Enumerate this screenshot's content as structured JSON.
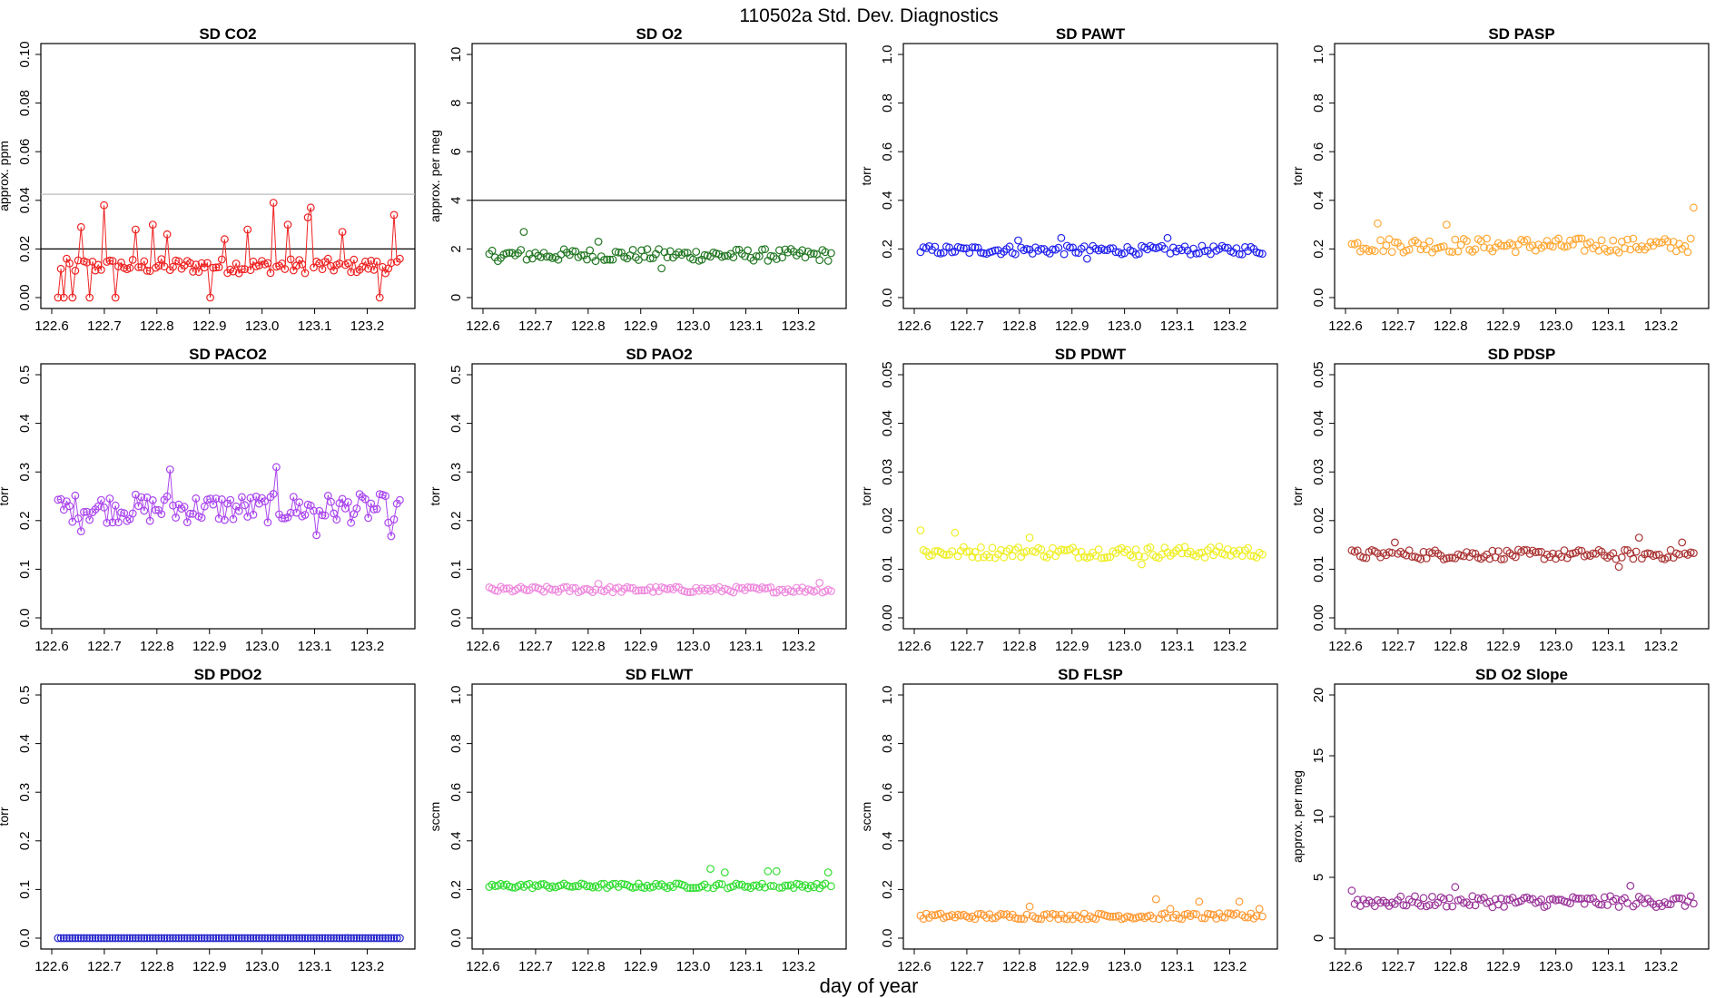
{
  "page": {
    "title": "110502a   Std. Dev. Diagnostics",
    "xlabel": "day of year"
  },
  "chart_data": [
    {
      "type": "scatter",
      "title": "SD CO2",
      "ylabel": "approx. ppm",
      "ylim": [
        0,
        0.1
      ],
      "yticks": [
        "0.00",
        "0.02",
        "0.04",
        "0.06",
        "0.08",
        "0.10"
      ],
      "xlim": [
        122.6,
        123.27
      ],
      "xticks": [
        "122.6",
        "122.7",
        "122.8",
        "122.9",
        "123.0",
        "123.1",
        "123.2"
      ],
      "color": "#ee2222",
      "connect": true,
      "hlines": [
        {
          "y": 0.02,
          "color": "#000000"
        },
        {
          "y": 0.0425,
          "color": "#bbbbbb"
        }
      ],
      "base": 0.013,
      "spread": 0.003,
      "spikes": [
        {
          "x": 122.61,
          "y": 0.0
        },
        {
          "x": 122.622,
          "y": 0.0
        },
        {
          "x": 122.64,
          "y": 0.0
        },
        {
          "x": 122.655,
          "y": 0.029
        },
        {
          "x": 122.67,
          "y": 0.0
        },
        {
          "x": 122.7,
          "y": 0.038
        },
        {
          "x": 122.72,
          "y": 0.0
        },
        {
          "x": 122.76,
          "y": 0.028
        },
        {
          "x": 122.79,
          "y": 0.03
        },
        {
          "x": 122.82,
          "y": 0.026
        },
        {
          "x": 122.9,
          "y": 0.0
        },
        {
          "x": 122.93,
          "y": 0.024
        },
        {
          "x": 122.97,
          "y": 0.028
        },
        {
          "x": 123.02,
          "y": 0.039
        },
        {
          "x": 123.05,
          "y": 0.03
        },
        {
          "x": 123.085,
          "y": 0.033
        },
        {
          "x": 123.095,
          "y": 0.037
        },
        {
          "x": 123.155,
          "y": 0.027
        },
        {
          "x": 123.225,
          "y": 0.0
        },
        {
          "x": 123.25,
          "y": 0.034
        }
      ]
    },
    {
      "type": "scatter",
      "title": "SD O2",
      "ylabel": "approx. per meg",
      "ylim": [
        0,
        10
      ],
      "yticks": [
        "0",
        "2",
        "4",
        "6",
        "8",
        "10"
      ],
      "xlim": [
        122.6,
        123.27
      ],
      "xticks": [
        "122.6",
        "122.7",
        "122.8",
        "122.9",
        "123.0",
        "123.1",
        "123.2"
      ],
      "color": "#227722",
      "connect": false,
      "hlines": [
        {
          "y": 4,
          "color": "#000000"
        }
      ],
      "base": 1.75,
      "spread": 0.25,
      "spikes": [
        {
          "x": 122.68,
          "y": 2.7
        },
        {
          "x": 122.82,
          "y": 2.3
        },
        {
          "x": 122.94,
          "y": 1.2
        }
      ]
    },
    {
      "type": "scatter",
      "title": "SD PAWT",
      "ylabel": "torr",
      "ylim": [
        0,
        1.0
      ],
      "yticks": [
        "0.0",
        "0.2",
        "0.4",
        "0.6",
        "0.8",
        "1.0"
      ],
      "xlim": [
        122.6,
        123.27
      ],
      "xticks": [
        "122.6",
        "122.7",
        "122.8",
        "122.9",
        "123.0",
        "123.1",
        "123.2"
      ],
      "color": "#2222ee",
      "connect": false,
      "hlines": [],
      "base": 0.195,
      "spread": 0.018,
      "spikes": [
        {
          "x": 122.8,
          "y": 0.235
        },
        {
          "x": 122.88,
          "y": 0.245
        },
        {
          "x": 123.08,
          "y": 0.245
        },
        {
          "x": 122.93,
          "y": 0.16
        }
      ]
    },
    {
      "type": "scatter",
      "title": "SD PASP",
      "ylabel": "torr",
      "ylim": [
        0,
        1.0
      ],
      "yticks": [
        "0.0",
        "0.2",
        "0.4",
        "0.6",
        "0.8",
        "1.0"
      ],
      "xlim": [
        122.6,
        123.27
      ],
      "xticks": [
        "122.6",
        "122.7",
        "122.8",
        "122.9",
        "123.0",
        "123.1",
        "123.2"
      ],
      "color": "#ffa733",
      "connect": false,
      "hlines": [],
      "base": 0.215,
      "spread": 0.03,
      "spikes": [
        {
          "x": 122.66,
          "y": 0.305
        },
        {
          "x": 122.79,
          "y": 0.3
        },
        {
          "x": 123.265,
          "y": 0.37
        }
      ]
    },
    {
      "type": "scatter",
      "title": "SD PACO2",
      "ylabel": "torr",
      "ylim": [
        0,
        0.5
      ],
      "yticks": [
        "0.0",
        "0.1",
        "0.2",
        "0.3",
        "0.4",
        "0.5"
      ],
      "xlim": [
        122.6,
        123.27
      ],
      "xticks": [
        "122.6",
        "122.7",
        "122.8",
        "122.9",
        "123.0",
        "123.1",
        "123.2"
      ],
      "color": "#aa44ee",
      "connect": true,
      "hlines": [],
      "base": 0.225,
      "spread": 0.03,
      "spikes": [
        {
          "x": 122.825,
          "y": 0.305
        },
        {
          "x": 123.025,
          "y": 0.31
        },
        {
          "x": 123.105,
          "y": 0.17
        },
        {
          "x": 123.245,
          "y": 0.168
        },
        {
          "x": 122.655,
          "y": 0.178
        }
      ]
    },
    {
      "type": "scatter",
      "title": "SD PAO2",
      "ylabel": "torr",
      "ylim": [
        0,
        0.5
      ],
      "yticks": [
        "0.0",
        "0.1",
        "0.2",
        "0.3",
        "0.4",
        "0.5"
      ],
      "xlim": [
        122.6,
        123.27
      ],
      "xticks": [
        "122.6",
        "122.7",
        "122.8",
        "122.9",
        "123.0",
        "123.1",
        "123.2"
      ],
      "color": "#ee88dd",
      "connect": false,
      "hlines": [],
      "base": 0.058,
      "spread": 0.006,
      "spikes": [
        {
          "x": 122.82,
          "y": 0.07
        },
        {
          "x": 123.24,
          "y": 0.072
        }
      ]
    },
    {
      "type": "scatter",
      "title": "SD PDWT",
      "ylabel": "torr",
      "ylim": [
        0,
        0.05
      ],
      "yticks": [
        "0.00",
        "0.01",
        "0.02",
        "0.03",
        "0.04",
        "0.05"
      ],
      "xlim": [
        122.6,
        123.27
      ],
      "xticks": [
        "122.6",
        "122.7",
        "122.8",
        "122.9",
        "123.0",
        "123.1",
        "123.2"
      ],
      "color": "#eeee22",
      "connect": false,
      "hlines": [],
      "base": 0.0135,
      "spread": 0.0012,
      "spikes": [
        {
          "x": 122.61,
          "y": 0.018
        },
        {
          "x": 122.68,
          "y": 0.0175
        },
        {
          "x": 122.82,
          "y": 0.0165
        },
        {
          "x": 123.035,
          "y": 0.011
        }
      ]
    },
    {
      "type": "scatter",
      "title": "SD PDSP",
      "ylabel": "torr",
      "ylim": [
        0,
        0.05
      ],
      "yticks": [
        "0.00",
        "0.01",
        "0.02",
        "0.03",
        "0.04",
        "0.05"
      ],
      "xlim": [
        122.6,
        123.27
      ],
      "xticks": [
        "122.6",
        "122.7",
        "122.8",
        "122.9",
        "123.0",
        "123.1",
        "123.2"
      ],
      "color": "#aa3333",
      "connect": false,
      "hlines": [],
      "base": 0.013,
      "spread": 0.001,
      "spikes": [
        {
          "x": 122.695,
          "y": 0.0155
        },
        {
          "x": 123.16,
          "y": 0.0165
        },
        {
          "x": 123.24,
          "y": 0.0155
        },
        {
          "x": 123.12,
          "y": 0.0105
        }
      ]
    },
    {
      "type": "scatter",
      "title": "SD PDO2",
      "ylabel": "torr",
      "ylim": [
        0,
        0.5
      ],
      "yticks": [
        "0.0",
        "0.1",
        "0.2",
        "0.3",
        "0.4",
        "0.5"
      ],
      "xlim": [
        122.6,
        123.27
      ],
      "xticks": [
        "122.6",
        "122.7",
        "122.8",
        "122.9",
        "123.0",
        "123.1",
        "123.2"
      ],
      "color": "#2222cc",
      "connect": false,
      "hlines": [],
      "base": 0.0,
      "spread": 0.0,
      "spikes": []
    },
    {
      "type": "scatter",
      "title": "SD FLWT",
      "ylabel": "sccm",
      "ylim": [
        0,
        1.0
      ],
      "yticks": [
        "0.0",
        "0.2",
        "0.4",
        "0.6",
        "0.8",
        "1.0"
      ],
      "xlim": [
        122.6,
        123.27
      ],
      "xticks": [
        "122.6",
        "122.7",
        "122.8",
        "122.9",
        "123.0",
        "123.1",
        "123.2"
      ],
      "color": "#33dd33",
      "connect": false,
      "hlines": [],
      "base": 0.215,
      "spread": 0.01,
      "spikes": [
        {
          "x": 123.03,
          "y": 0.285
        },
        {
          "x": 123.06,
          "y": 0.27
        },
        {
          "x": 123.14,
          "y": 0.275
        },
        {
          "x": 123.16,
          "y": 0.275
        },
        {
          "x": 123.255,
          "y": 0.27
        }
      ]
    },
    {
      "type": "scatter",
      "title": "SD FLSP",
      "ylabel": "sccm",
      "ylim": [
        0,
        1.0
      ],
      "yticks": [
        "0.0",
        "0.2",
        "0.4",
        "0.6",
        "0.8",
        "1.0"
      ],
      "xlim": [
        122.6,
        123.27
      ],
      "xticks": [
        "122.6",
        "122.7",
        "122.8",
        "122.9",
        "123.0",
        "123.1",
        "123.2"
      ],
      "color": "#ff9933",
      "connect": false,
      "hlines": [],
      "base": 0.09,
      "spread": 0.012,
      "spikes": [
        {
          "x": 122.82,
          "y": 0.13
        },
        {
          "x": 123.06,
          "y": 0.16
        },
        {
          "x": 123.085,
          "y": 0.12
        },
        {
          "x": 123.14,
          "y": 0.15
        },
        {
          "x": 123.22,
          "y": 0.15
        },
        {
          "x": 123.255,
          "y": 0.12
        }
      ]
    },
    {
      "type": "scatter",
      "title": "SD O2 Slope",
      "ylabel": "approx. per meg",
      "ylim": [
        0,
        20
      ],
      "yticks": [
        "0",
        "5",
        "10",
        "15",
        "20"
      ],
      "xlim": [
        122.6,
        123.27
      ],
      "xticks": [
        "122.6",
        "122.7",
        "122.8",
        "122.9",
        "123.0",
        "123.1",
        "123.2"
      ],
      "color": "#993399",
      "connect": false,
      "hlines": [],
      "base": 3.0,
      "spread": 0.45,
      "spikes": [
        {
          "x": 122.61,
          "y": 3.9
        },
        {
          "x": 122.81,
          "y": 4.2
        },
        {
          "x": 123.14,
          "y": 4.3
        }
      ]
    }
  ]
}
